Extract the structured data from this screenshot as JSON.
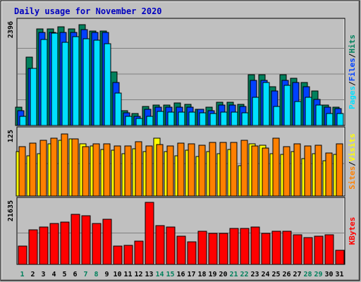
{
  "chart_data": [
    {
      "type": "bar",
      "title": "Daily usage for November 2020",
      "panel": "hits-files-pages",
      "right_label_parts": [
        {
          "text": "Pages",
          "color": "#00E0FF"
        },
        {
          "text": "/",
          "color": "#000000"
        },
        {
          "text": "Files",
          "color": "#0040FF"
        },
        {
          "text": "/",
          "color": "#000000"
        },
        {
          "text": "Hits",
          "color": "#00805C"
        }
      ],
      "ymax_label": "2396",
      "ylim": [
        0,
        2396
      ],
      "categories": [
        "1",
        "2",
        "3",
        "4",
        "5",
        "6",
        "7",
        "8",
        "9",
        "10",
        "11",
        "12",
        "13",
        "14",
        "15",
        "16",
        "17",
        "18",
        "19",
        "20",
        "21",
        "22",
        "23",
        "24",
        "25",
        "26",
        "27",
        "28",
        "29",
        "30",
        "31"
      ],
      "weekend_days": [
        "1",
        "7",
        "8",
        "14",
        "15",
        "21",
        "22",
        "28",
        "29"
      ],
      "series": [
        {
          "name": "Hits",
          "color": "#00805C",
          "values": [
            430,
            1600,
            2250,
            2250,
            2300,
            2250,
            2350,
            2200,
            2200,
            1250,
            350,
            280,
            440,
            480,
            470,
            520,
            500,
            380,
            420,
            540,
            540,
            490,
            1180,
            1180,
            900,
            1180,
            1100,
            1000,
            800,
            480,
            420
          ]
        },
        {
          "name": "Files",
          "color": "#0040FF",
          "values": [
            350,
            1330,
            2170,
            2170,
            2170,
            2170,
            2230,
            2170,
            2170,
            1000,
            300,
            220,
            380,
            420,
            420,
            420,
            420,
            380,
            350,
            480,
            480,
            440,
            1050,
            1050,
            800,
            1050,
            1000,
            900,
            600,
            420,
            400
          ]
        },
        {
          "name": "Pages",
          "color": "#00E0FF",
          "values": [
            210,
            1330,
            2000,
            2150,
            1930,
            2070,
            2020,
            1980,
            1900,
            750,
            210,
            170,
            210,
            330,
            320,
            310,
            320,
            300,
            280,
            320,
            320,
            300,
            650,
            1000,
            450,
            930,
            550,
            650,
            470,
            280,
            280
          ]
        }
      ]
    },
    {
      "type": "bar",
      "panel": "visits-sites",
      "right_label_parts": [
        {
          "text": "Sites",
          "color": "#FF8000"
        },
        {
          "text": "/",
          "color": "#000000"
        },
        {
          "text": "Visits",
          "color": "#FFFF00"
        }
      ],
      "ymax_label": "125",
      "ylim": [
        0,
        125
      ],
      "categories": [
        "1",
        "2",
        "3",
        "4",
        "5",
        "6",
        "7",
        "8",
        "9",
        "10",
        "11",
        "12",
        "13",
        "14",
        "15",
        "16",
        "17",
        "18",
        "19",
        "20",
        "21",
        "22",
        "23",
        "24",
        "25",
        "26",
        "27",
        "28",
        "29",
        "30",
        "31"
      ],
      "series": [
        {
          "name": "Visits",
          "color": "#FFFF00",
          "values": [
            85,
            78,
            82,
            100,
            108,
            110,
            100,
            97,
            90,
            88,
            82,
            91,
            85,
            112,
            85,
            78,
            88,
            76,
            85,
            82,
            89,
            58,
            100,
            98,
            82,
            80,
            85,
            72,
            82,
            68,
            80
          ]
        },
        {
          "name": "Sites",
          "color": "#FF8000",
          "values": [
            95,
            102,
            108,
            112,
            120,
            110,
            95,
            101,
            101,
            97,
            97,
            104,
            97,
            99,
            97,
            102,
            101,
            98,
            103,
            103,
            103,
            108,
            96,
            92,
            112,
            95,
            101,
            97,
            98,
            83,
            101
          ]
        }
      ]
    },
    {
      "type": "bar",
      "panel": "kbytes",
      "right_label_parts": [
        {
          "text": "KBytes",
          "color": "#FF0000"
        }
      ],
      "ymax_label": "21635",
      "ylim": [
        0,
        21635
      ],
      "categories": [
        "1",
        "2",
        "3",
        "4",
        "5",
        "6",
        "7",
        "8",
        "9",
        "10",
        "11",
        "12",
        "13",
        "14",
        "15",
        "16",
        "17",
        "18",
        "19",
        "20",
        "21",
        "22",
        "23",
        "24",
        "25",
        "26",
        "27",
        "28",
        "29",
        "30",
        "31"
      ],
      "series": [
        {
          "name": "KBytes",
          "color": "#FF0000",
          "values": [
            6200,
            12000,
            13000,
            14000,
            14500,
            17200,
            16700,
            14000,
            15500,
            6300,
            6600,
            8100,
            21300,
            13300,
            12800,
            9700,
            7900,
            11500,
            10700,
            10700,
            12300,
            12300,
            12800,
            10600,
            11400,
            11400,
            10200,
            9200,
            9700,
            10300,
            4800
          ]
        }
      ]
    }
  ]
}
